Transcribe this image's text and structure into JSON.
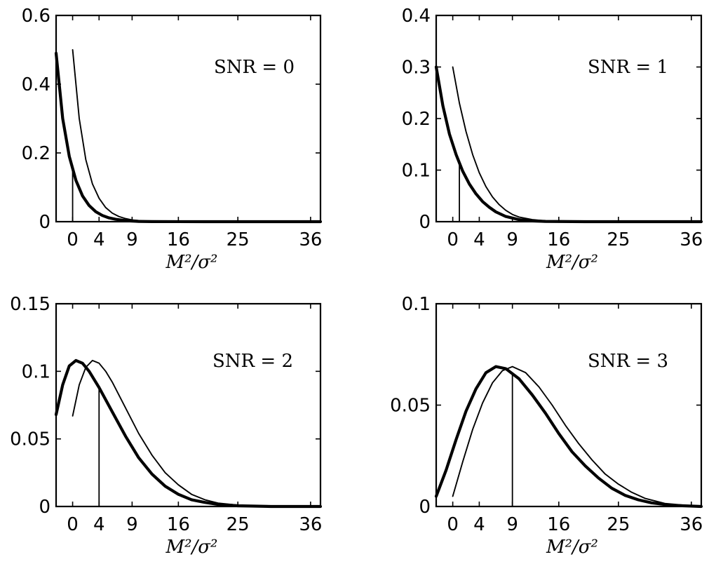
{
  "chart_data": [
    {
      "type": "line",
      "annotation": "SNR = 0",
      "xlabel": "M²/σ²",
      "xlim": [
        -2.5,
        37.5
      ],
      "ylim": [
        0,
        0.6
      ],
      "xticks": [
        0,
        4,
        9,
        16,
        25,
        36
      ],
      "yticks": [
        0,
        0.2,
        0.4,
        0.6
      ],
      "xtick_labels": [
        "0",
        "4",
        "9",
        "16",
        "25",
        "36"
      ],
      "ytick_labels": [
        "0",
        "0.2",
        "0.4",
        "0.6"
      ],
      "marker_x": 0,
      "series": [
        {
          "style": "thick",
          "x": [
            -2.5,
            -1.5,
            -0.5,
            0.5,
            1.5,
            2.5,
            3.5,
            4.5,
            5.5,
            6.5,
            8,
            10,
            12,
            20,
            37.5
          ],
          "y": [
            0.49,
            0.3,
            0.19,
            0.12,
            0.075,
            0.047,
            0.029,
            0.018,
            0.011,
            0.007,
            0.003,
            0.0008,
            0.0002,
            0,
            0
          ]
        },
        {
          "style": "thin",
          "x": [
            0,
            1,
            2,
            3,
            4,
            5,
            6,
            7,
            8,
            9,
            10,
            12,
            14,
            20,
            37.5
          ],
          "y": [
            0.5,
            0.3,
            0.18,
            0.11,
            0.068,
            0.041,
            0.025,
            0.015,
            0.009,
            0.005,
            0.003,
            0.001,
            0.0003,
            0,
            0
          ]
        }
      ]
    },
    {
      "type": "line",
      "annotation": "SNR = 1",
      "xlabel": "M²/σ²",
      "xlim": [
        -2.5,
        37.5
      ],
      "ylim": [
        0,
        0.4
      ],
      "xticks": [
        0,
        4,
        9,
        16,
        25,
        36
      ],
      "yticks": [
        0,
        0.1,
        0.2,
        0.3,
        0.4
      ],
      "xtick_labels": [
        "0",
        "4",
        "9",
        "16",
        "25",
        "36"
      ],
      "ytick_labels": [
        "0",
        "0.1",
        "0.2",
        "0.3",
        "0.4"
      ],
      "marker_x": 1,
      "series": [
        {
          "style": "thick",
          "x": [
            -2.5,
            -1.5,
            -0.5,
            0.5,
            1.5,
            2.5,
            3.5,
            4.5,
            5.5,
            6.5,
            8,
            10,
            12,
            14,
            20,
            37.5
          ],
          "y": [
            0.3,
            0.225,
            0.17,
            0.13,
            0.098,
            0.073,
            0.054,
            0.039,
            0.028,
            0.019,
            0.01,
            0.004,
            0.0015,
            0.0005,
            0,
            0
          ]
        },
        {
          "style": "thin",
          "x": [
            0,
            1,
            2,
            3,
            4,
            5,
            6,
            7,
            8,
            9,
            10,
            12,
            14,
            16,
            20,
            37.5
          ],
          "y": [
            0.3,
            0.23,
            0.175,
            0.13,
            0.095,
            0.068,
            0.048,
            0.033,
            0.022,
            0.014,
            0.009,
            0.004,
            0.0015,
            0.0005,
            0,
            0
          ]
        }
      ]
    },
    {
      "type": "line",
      "annotation": "SNR = 2",
      "xlabel": "M²/σ²",
      "xlim": [
        -2.5,
        37.5
      ],
      "ylim": [
        0,
        0.15
      ],
      "xticks": [
        0,
        4,
        9,
        16,
        25,
        36
      ],
      "yticks": [
        0,
        0.05,
        0.1,
        0.15
      ],
      "xtick_labels": [
        "0",
        "4",
        "9",
        "16",
        "25",
        "36"
      ],
      "ytick_labels": [
        "0",
        "0.05",
        "0.1",
        "0.15"
      ],
      "marker_x": 4,
      "series": [
        {
          "style": "thick",
          "x": [
            -2.5,
            -1.5,
            -0.5,
            0.5,
            1.5,
            2.5,
            4,
            6,
            8,
            10,
            12,
            14,
            16,
            18,
            20,
            22,
            25,
            30,
            37.5
          ],
          "y": [
            0.068,
            0.09,
            0.104,
            0.108,
            0.106,
            0.1,
            0.088,
            0.07,
            0.052,
            0.036,
            0.024,
            0.015,
            0.009,
            0.005,
            0.003,
            0.0015,
            0.0005,
            0,
            0
          ]
        },
        {
          "style": "thin",
          "x": [
            0,
            1,
            2,
            3,
            4,
            5,
            6,
            8,
            10,
            12,
            14,
            16,
            18,
            20,
            22,
            25,
            30,
            37.5
          ],
          "y": [
            0.067,
            0.09,
            0.103,
            0.108,
            0.106,
            0.1,
            0.092,
            0.073,
            0.054,
            0.038,
            0.025,
            0.016,
            0.009,
            0.005,
            0.0025,
            0.001,
            0,
            0
          ]
        }
      ]
    },
    {
      "type": "line",
      "annotation": "SNR = 3",
      "xlabel": "M²/σ²",
      "xlim": [
        -2.5,
        37.5
      ],
      "ylim": [
        0,
        0.1
      ],
      "xticks": [
        0,
        4,
        9,
        16,
        25,
        36
      ],
      "yticks": [
        0,
        0.05,
        0.1
      ],
      "xtick_labels": [
        "0",
        "4",
        "9",
        "16",
        "25",
        "36"
      ],
      "ytick_labels": [
        "0",
        "0.05",
        "0.1"
      ],
      "marker_x": 9,
      "series": [
        {
          "style": "thick",
          "x": [
            -2.5,
            -1,
            0.5,
            2,
            3.5,
            5,
            6.5,
            8,
            10,
            12,
            14,
            16,
            18,
            20,
            22,
            24,
            26,
            28,
            30,
            33,
            37.5
          ],
          "y": [
            0.005,
            0.018,
            0.033,
            0.047,
            0.058,
            0.066,
            0.069,
            0.068,
            0.063,
            0.055,
            0.046,
            0.036,
            0.027,
            0.02,
            0.014,
            0.009,
            0.0055,
            0.0033,
            0.0018,
            0.0006,
            0
          ]
        },
        {
          "style": "thin",
          "x": [
            0,
            1.5,
            3,
            4.5,
            6,
            7.5,
            9,
            11,
            13,
            15,
            17,
            19,
            21,
            23,
            25,
            27,
            29,
            32,
            36
          ],
          "y": [
            0.005,
            0.022,
            0.038,
            0.051,
            0.061,
            0.067,
            0.069,
            0.066,
            0.059,
            0.05,
            0.04,
            0.031,
            0.023,
            0.016,
            0.011,
            0.007,
            0.004,
            0.0015,
            0.0003
          ]
        }
      ]
    }
  ]
}
